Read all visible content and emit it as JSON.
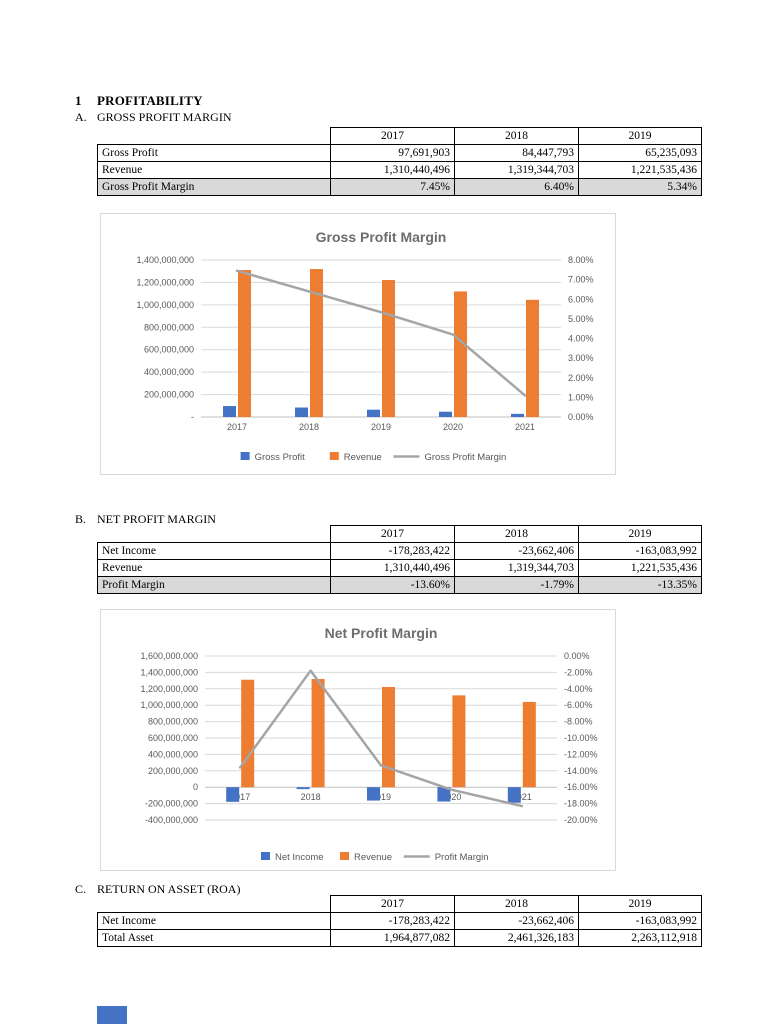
{
  "sections": {
    "main": {
      "number": "1",
      "title": "PROFITABILITY"
    },
    "a": {
      "label": "A.",
      "title": "GROSS PROFIT MARGIN"
    },
    "b": {
      "label": "B.",
      "title": "NET PROFIT MARGIN"
    },
    "c": {
      "label": "C.",
      "title": "RETURN ON ASSET (ROA)"
    }
  },
  "tables": {
    "gpm": {
      "years": [
        "2017",
        "2018",
        "2019"
      ],
      "rows": [
        {
          "label": "Gross Profit",
          "values": [
            "97,691,903",
            "84,447,793",
            "65,235,093"
          ]
        },
        {
          "label": "Revenue",
          "values": [
            "1,310,440,496",
            "1,319,344,703",
            "1,221,535,436"
          ]
        },
        {
          "label": "Gross Profit Margin",
          "values": [
            "7.45%",
            "6.40%",
            "5.34%"
          ]
        }
      ]
    },
    "npm": {
      "years": [
        "2017",
        "2018",
        "2019"
      ],
      "rows": [
        {
          "label": "Net Income",
          "values": [
            "-178,283,422",
            "-23,662,406",
            "-163,083,992"
          ]
        },
        {
          "label": "Revenue",
          "values": [
            "1,310,440,496",
            "1,319,344,703",
            "1,221,535,436"
          ]
        },
        {
          "label": "Profit Margin",
          "values": [
            "-13.60%",
            "-1.79%",
            "-13.35%"
          ]
        }
      ]
    },
    "roa": {
      "years": [
        "2017",
        "2018",
        "2019"
      ],
      "rows": [
        {
          "label": "Net Income",
          "values": [
            "-178,283,422",
            "-23,662,406",
            "-163,083,992"
          ]
        },
        {
          "label": "Total Asset",
          "values": [
            "1,964,877,082",
            "2,461,326,183",
            "2,263,112,918"
          ]
        }
      ]
    }
  },
  "chart_data": [
    {
      "type": "combo-bar-line",
      "title": "Gross Profit Margin",
      "categories": [
        "2017",
        "2018",
        "2019",
        "2020",
        "2021"
      ],
      "series": [
        {
          "name": "Gross Profit",
          "type": "bar",
          "color": "#4472C4",
          "values": [
            97691903,
            84447793,
            65235093,
            47000000,
            28000000
          ]
        },
        {
          "name": "Revenue",
          "type": "bar",
          "color": "#ED7D31",
          "values": [
            1310440496,
            1319344703,
            1221535436,
            1120000000,
            1045000000
          ]
        },
        {
          "name": "Gross Profit Margin",
          "type": "line",
          "color": "#A5A5A5",
          "axis": "right",
          "values": [
            7.45,
            6.4,
            5.34,
            4.2,
            1.1
          ]
        }
      ],
      "left_axis": {
        "min": 0,
        "max": 1400000000,
        "step": 200000000,
        "zero_label": "-"
      },
      "right_axis": {
        "min": 0,
        "max": 8,
        "step": 1,
        "format": "percent"
      },
      "legend_position": "bottom",
      "grid": true
    },
    {
      "type": "combo-bar-line",
      "title": "Net Profit Margin",
      "categories": [
        "2017",
        "2018",
        "2019",
        "2020",
        "2021"
      ],
      "series": [
        {
          "name": "Net Income",
          "type": "bar",
          "color": "#4472C4",
          "values": [
            -178283422,
            -23662406,
            -163083992,
            -175000000,
            -190000000
          ]
        },
        {
          "name": "Revenue",
          "type": "bar",
          "color": "#ED7D31",
          "values": [
            1310440496,
            1319344703,
            1221535436,
            1120000000,
            1040000000
          ]
        },
        {
          "name": "Profit Margin",
          "type": "line",
          "color": "#A5A5A5",
          "axis": "right",
          "values": [
            -13.6,
            -1.79,
            -13.35,
            -16.3,
            -18.3
          ]
        }
      ],
      "left_axis": {
        "min": -400000000,
        "max": 1600000000,
        "step": 200000000
      },
      "right_axis": {
        "min": -20,
        "max": 0,
        "step": 2,
        "format": "percent"
      },
      "legend_position": "bottom",
      "grid": true
    }
  ],
  "misc": {
    "partial_bar_color": "#4472C4"
  }
}
